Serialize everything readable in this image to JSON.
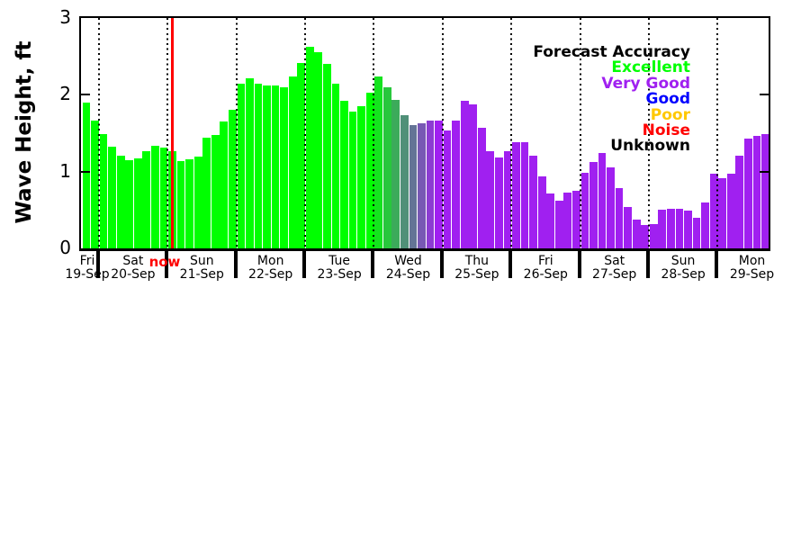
{
  "chart_data": {
    "type": "bar",
    "title": "",
    "ylabel": "Wave Height, ft",
    "xlabel": "",
    "ylim": [
      0,
      3
    ],
    "yticks": [
      0,
      1,
      2,
      3
    ],
    "bar_interval": "3-hour",
    "grid": "vertical dotted lines at day boundaries",
    "legend_position": "upper right",
    "accuracy_colors": {
      "excellent": "#00ff00",
      "very_good": "#a020f0",
      "good": "#0000ff",
      "poor": "#ffc800",
      "noise": "#ff0000",
      "unknown": "#000000"
    },
    "days": [
      {
        "day": "Fri",
        "date": "19-Sep",
        "accuracy": "excellent",
        "values": [
          1.9,
          1.67
        ]
      },
      {
        "day": "Sat",
        "date": "20-Sep",
        "accuracy": "excellent",
        "values": [
          1.49,
          1.33,
          1.21,
          1.15,
          1.17,
          1.26,
          1.34,
          1.31
        ]
      },
      {
        "day": "Sun",
        "date": "21-Sep",
        "accuracy": "excellent",
        "values": [
          1.27,
          1.14,
          1.16,
          1.19,
          1.44,
          1.48,
          1.65,
          1.8
        ]
      },
      {
        "day": "Mon",
        "date": "22-Sep",
        "accuracy": "excellent",
        "values": [
          2.15,
          2.22,
          2.15,
          2.12,
          2.12,
          2.1,
          2.24,
          2.42
        ]
      },
      {
        "day": "Tue",
        "date": "23-Sep",
        "accuracy": "excellent",
        "values": [
          2.62,
          2.55,
          2.4,
          2.15,
          1.92,
          1.78,
          1.85,
          2.03
        ]
      },
      {
        "day": "Wed",
        "date": "24-Sep",
        "accuracy": "excellent-to-very-good-transition",
        "values": [
          2.24,
          2.1,
          1.93,
          1.73,
          1.6,
          1.63,
          1.66,
          1.67
        ]
      },
      {
        "day": "Thu",
        "date": "25-Sep",
        "accuracy": "very_good",
        "values": [
          1.53,
          1.67,
          1.92,
          1.87,
          1.57,
          1.26,
          1.18,
          1.26
        ]
      },
      {
        "day": "Fri",
        "date": "26-Sep",
        "accuracy": "very_good",
        "values": [
          1.38,
          1.38,
          1.21,
          0.94,
          0.71,
          0.62,
          0.73,
          0.75
        ]
      },
      {
        "day": "Sat",
        "date": "27-Sep",
        "accuracy": "very_good",
        "values": [
          0.98,
          1.13,
          1.24,
          1.06,
          0.79,
          0.54,
          0.38,
          0.31
        ]
      },
      {
        "day": "Sun",
        "date": "28-Sep",
        "accuracy": "very_good",
        "values": [
          0.32,
          0.5,
          0.51,
          0.51,
          0.49,
          0.4,
          0.6,
          0.97
        ]
      },
      {
        "day": "Mon",
        "date": "29-Sep",
        "accuracy": "very_good",
        "values": [
          0.92,
          0.97,
          1.21,
          1.43,
          1.46,
          1.49
        ]
      }
    ]
  },
  "legend": {
    "title": "Forecast Accuracy",
    "entries": [
      {
        "label": "Excellent",
        "color": "#00ff00"
      },
      {
        "label": "Very Good",
        "color": "#a020f0"
      },
      {
        "label": "Good",
        "color": "#0000ff"
      },
      {
        "label": "Poor",
        "color": "#ffc800"
      },
      {
        "label": "Noise",
        "color": "#ff0000"
      },
      {
        "label": "Unknown",
        "color": "#000000"
      }
    ]
  },
  "now_marker": {
    "label": "now",
    "color": "#ff0000"
  }
}
